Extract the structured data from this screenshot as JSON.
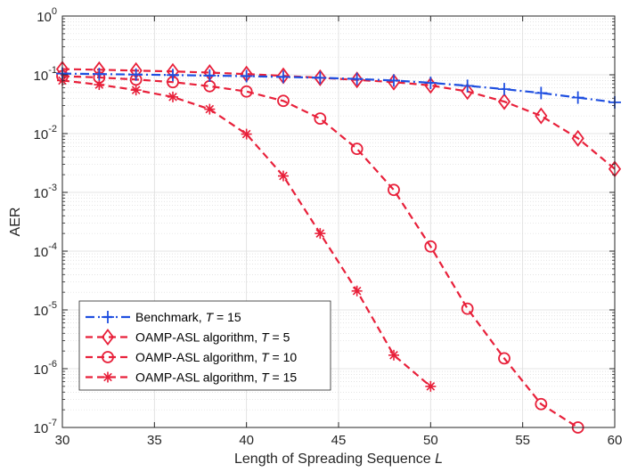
{
  "chart_data": {
    "type": "line",
    "xlabel": "Length of Spreading Sequence",
    "xlabel_var": "L",
    "ylabel": "AER",
    "yscale": "log",
    "xlim": [
      30,
      60
    ],
    "ylim": [
      1e-07,
      1
    ],
    "xticks": [
      "30",
      "35",
      "40",
      "45",
      "50",
      "55",
      "60"
    ],
    "yticks": [
      {
        "base": "10",
        "exp": "0",
        "value": 1
      },
      {
        "base": "10",
        "exp": "-1",
        "value": 0.1
      },
      {
        "base": "10",
        "exp": "-2",
        "value": 0.01
      },
      {
        "base": "10",
        "exp": "-3",
        "value": 0.001
      },
      {
        "base": "10",
        "exp": "-4",
        "value": 0.0001
      },
      {
        "base": "10",
        "exp": "-5",
        "value": 1e-05
      },
      {
        "base": "10",
        "exp": "-6",
        "value": 1e-06
      },
      {
        "base": "10",
        "exp": "-7",
        "value": 1e-07
      }
    ],
    "grid": true,
    "legend_position": "bottom-left",
    "series": [
      {
        "name": "Benchmark, ",
        "var": "T",
        "suffix": " = 15",
        "color": "#1f4fe0",
        "dash": "dashdot",
        "marker": "plus",
        "x": [
          30,
          32,
          34,
          36,
          38,
          40,
          42,
          44,
          46,
          48,
          50,
          52,
          54,
          56,
          58,
          60
        ],
        "y": [
          0.105,
          0.103,
          0.101,
          0.099,
          0.097,
          0.095,
          0.092,
          0.089,
          0.085,
          0.08,
          0.073,
          0.065,
          0.057,
          0.049,
          0.041,
          0.034
        ]
      },
      {
        "name": "OAMP-ASL algorithm, ",
        "var": "T",
        "suffix": " = 5",
        "color": "#e8203a",
        "dash": "dashed",
        "marker": "diamond",
        "x": [
          30,
          32,
          34,
          36,
          38,
          40,
          42,
          44,
          46,
          48,
          50,
          52,
          54,
          56,
          58,
          60
        ],
        "y": [
          0.125,
          0.122,
          0.118,
          0.114,
          0.109,
          0.103,
          0.096,
          0.089,
          0.082,
          0.075,
          0.066,
          0.052,
          0.035,
          0.02,
          0.0083,
          0.0025
        ]
      },
      {
        "name": "OAMP-ASL algorithm, ",
        "var": "T",
        "suffix": " = 10",
        "color": "#e8203a",
        "dash": "dashed",
        "marker": "circle",
        "x": [
          30,
          32,
          34,
          36,
          38,
          40,
          42,
          44,
          46,
          48,
          50,
          52,
          54,
          56,
          58
        ],
        "y": [
          0.095,
          0.09,
          0.083,
          0.075,
          0.064,
          0.052,
          0.036,
          0.018,
          0.0055,
          0.0011,
          0.00012,
          1.05e-05,
          1.5e-06,
          2.5e-07,
          1e-07
        ]
      },
      {
        "name": "OAMP-ASL algorithm, ",
        "var": "T",
        "suffix": " = 15",
        "color": "#e8203a",
        "dash": "dashed",
        "marker": "asterisk",
        "x": [
          30,
          32,
          34,
          36,
          38,
          40,
          42,
          44,
          46,
          48,
          50
        ],
        "y": [
          0.08,
          0.068,
          0.055,
          0.042,
          0.026,
          0.0098,
          0.0019,
          0.0002,
          2.1e-05,
          1.7e-06,
          5e-07
        ]
      }
    ]
  }
}
